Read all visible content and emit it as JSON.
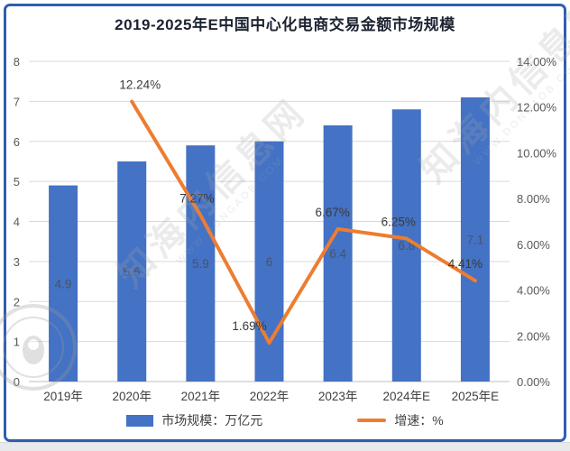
{
  "frame": {
    "border_color": "#2e5faf"
  },
  "chart_data": {
    "type": "bar",
    "title": "2019-2025年E中国中心化电商交易金额市场规模",
    "categories": [
      "2019年",
      "2020年",
      "2021年",
      "2022年",
      "2023年",
      "2024年E",
      "2025年E"
    ],
    "series": [
      {
        "name": "市场规模：万亿元",
        "type": "bar",
        "color": "#4472c4",
        "values": [
          4.9,
          5.5,
          5.9,
          6,
          6.4,
          6.8,
          7.1
        ],
        "labels": [
          "4.9",
          "5.5",
          "5.9",
          "6",
          "6.4",
          "6.8",
          "7.1"
        ]
      },
      {
        "name": "增速：%",
        "type": "line",
        "color": "#ed7d31",
        "values": [
          null,
          12.24,
          7.27,
          1.69,
          6.67,
          6.25,
          4.41
        ],
        "labels": [
          null,
          "12.24%",
          "7.27%",
          "1.69%",
          "6.67%",
          "6.25%",
          "4.41%"
        ]
      }
    ],
    "y_left": {
      "min": 0,
      "max": 8,
      "ticks": [
        "0",
        "1",
        "2",
        "3",
        "4",
        "5",
        "6",
        "7",
        "8"
      ]
    },
    "y_right": {
      "min": 0,
      "max": 14,
      "ticks": [
        "0.00%",
        "2.00%",
        "4.00%",
        "6.00%",
        "8.00%",
        "10.00%",
        "12.00%",
        "14.00%"
      ]
    },
    "grid": true,
    "legend_position": "bottom",
    "legend": [
      {
        "label": "市场规模：万亿元",
        "color": "#4472c4"
      },
      {
        "label": "增速：%",
        "color": "#ed7d31"
      }
    ],
    "colors": {
      "grid": "#d9d9d9",
      "axis_line": "#bfbfbf",
      "tick_text": "#595959"
    }
  },
  "watermark": {
    "big_text": "知海内信息网",
    "small_text": "WWW.DONGAOB.COM"
  }
}
